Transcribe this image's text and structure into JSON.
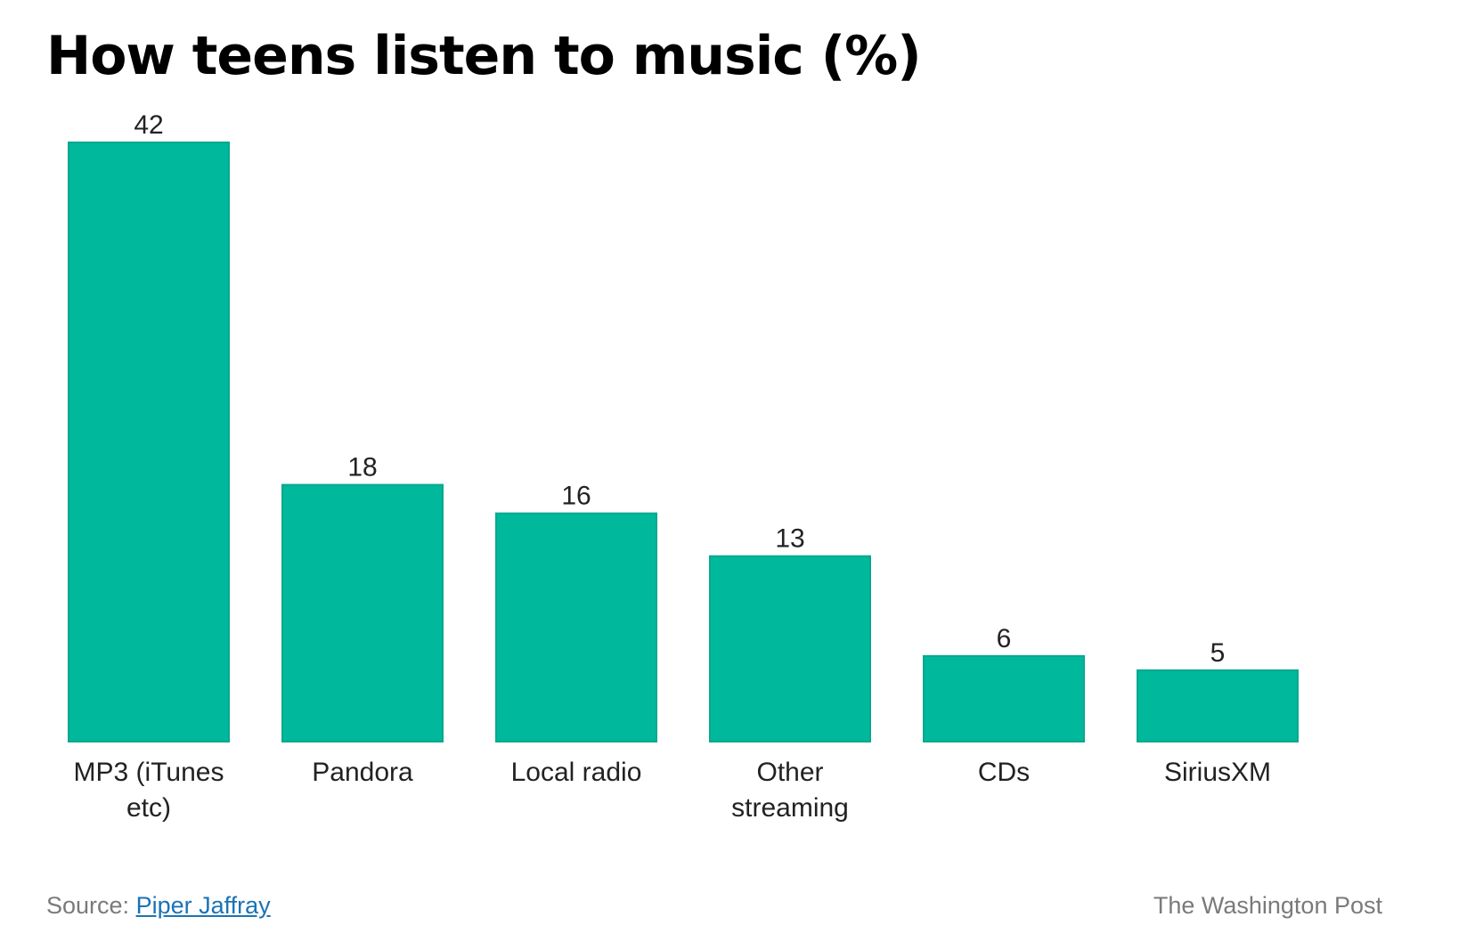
{
  "colors": {
    "bar": "#00b89c",
    "bar_stroke": "#0aa88e",
    "text": "#222222",
    "muted": "#7a7a7a",
    "link": "#1a73b5"
  },
  "chart_data": {
    "type": "bar",
    "title": "How teens listen to music (%)",
    "categories": [
      "MP3 (iTunes etc)",
      "Pandora",
      "Local radio",
      "Other streaming",
      "CDs",
      "SiriusXM"
    ],
    "category_lines": [
      [
        "MP3 (iTunes",
        "etc)"
      ],
      [
        "Pandora"
      ],
      [
        "Local radio"
      ],
      [
        "Other",
        "streaming"
      ],
      [
        "CDs"
      ],
      [
        "SiriusXM"
      ]
    ],
    "values": [
      42,
      18,
      16,
      13,
      6,
      5
    ],
    "value_labels": [
      "42",
      "18",
      "16",
      "13",
      "6",
      "5"
    ],
    "xlabel": "",
    "ylabel": "",
    "ylim": [
      0,
      42
    ],
    "grid": false
  },
  "footer": {
    "source_prefix": "Source: ",
    "source_link": "Piper Jaffray",
    "credit": "The Washington Post"
  }
}
